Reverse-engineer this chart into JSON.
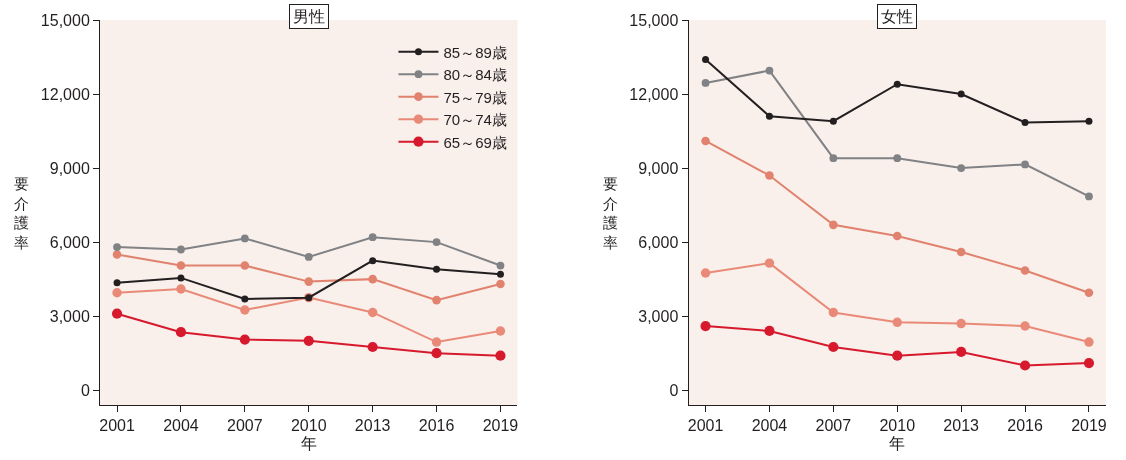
{
  "chart_data": [
    {
      "type": "line",
      "title": "男性",
      "xlabel": "年",
      "ylabel": "要介護率",
      "x": [
        2001,
        2004,
        2007,
        2010,
        2013,
        2016,
        2019
      ],
      "xlim": [
        2000.2,
        2019.8
      ],
      "xticks": [
        2001,
        2004,
        2007,
        2010,
        2013,
        2016,
        2019
      ],
      "ylim": [
        -600,
        15000
      ],
      "yticks": [
        {
          "value": 0,
          "label": "0"
        },
        {
          "value": 3000,
          "label": "3,000"
        },
        {
          "value": 6000,
          "label": "6,000"
        },
        {
          "value": 9000,
          "label": "9,000"
        },
        {
          "value": 12000,
          "label": "12,000"
        },
        {
          "value": 15000,
          "label": "15,000"
        }
      ],
      "grid": false,
      "legend": "top right",
      "marker": "circle",
      "line_style": "solid",
      "series": [
        {
          "name": "85～89歳",
          "color": "#231f20",
          "values": [
            4350,
            4550,
            3700,
            3750,
            5250,
            4900,
            4700
          ]
        },
        {
          "name": "80～84歳",
          "color": "#808285",
          "values": [
            5800,
            5700,
            6150,
            5400,
            6200,
            6000,
            5050
          ]
        },
        {
          "name": "75～79歳",
          "color": "#e0826e",
          "values": [
            5500,
            5050,
            5050,
            4400,
            4500,
            3650,
            4300
          ]
        },
        {
          "name": "70～74歳",
          "color": "#e98a78",
          "values": [
            3950,
            4100,
            3250,
            3750,
            3150,
            1950,
            2400
          ]
        },
        {
          "name": "65～69歳",
          "color": "#d7192d",
          "values": [
            3100,
            2350,
            2050,
            2000,
            1750,
            1500,
            1400
          ]
        }
      ]
    },
    {
      "type": "line",
      "title": "女性",
      "xlabel": "年",
      "ylabel": "要介護率",
      "x": [
        2001,
        2004,
        2007,
        2010,
        2013,
        2016,
        2019
      ],
      "xlim": [
        2000.2,
        2019.8
      ],
      "xticks": [
        2001,
        2004,
        2007,
        2010,
        2013,
        2016,
        2019
      ],
      "ylim": [
        -600,
        15000
      ],
      "yticks": [
        {
          "value": 0,
          "label": "0"
        },
        {
          "value": 3000,
          "label": "3,000"
        },
        {
          "value": 6000,
          "label": "6,000"
        },
        {
          "value": 9000,
          "label": "9,000"
        },
        {
          "value": 12000,
          "label": "12,000"
        },
        {
          "value": 15000,
          "label": "15,000"
        }
      ],
      "grid": false,
      "marker": "circle",
      "line_style": "solid",
      "series": [
        {
          "color": "#231f20",
          "values": [
            13400,
            11100,
            10900,
            12400,
            12000,
            10850,
            10900
          ]
        },
        {
          "color": "#808285",
          "values": [
            12450,
            12950,
            9400,
            9400,
            9000,
            9150,
            7850
          ]
        },
        {
          "color": "#e0826e",
          "values": [
            10100,
            8700,
            6700,
            6250,
            5600,
            4850,
            3950
          ]
        },
        {
          "color": "#e98a78",
          "values": [
            4750,
            5150,
            3150,
            2750,
            2700,
            2600,
            1950
          ]
        },
        {
          "color": "#d7192d",
          "values": [
            2600,
            2400,
            1750,
            1400,
            1550,
            1000,
            1100
          ]
        }
      ]
    }
  ]
}
